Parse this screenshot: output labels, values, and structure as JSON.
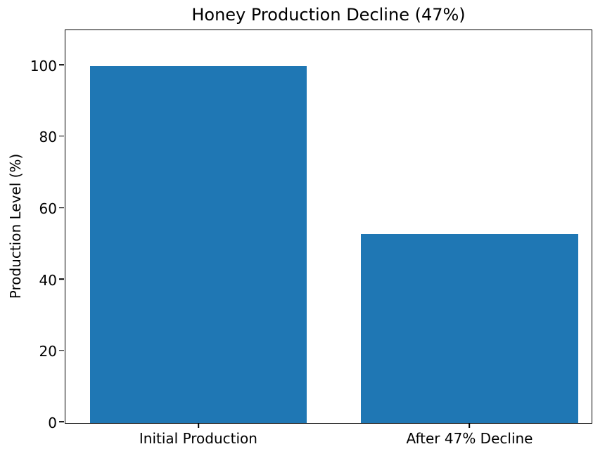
{
  "figure": {
    "background": "#ffffff"
  },
  "chart_data": {
    "type": "bar",
    "title": "Honey Production Decline (47%)",
    "categories": [
      "Initial Production",
      "After 47% Decline"
    ],
    "values": [
      100,
      53
    ],
    "xlabel": "",
    "ylabel": "Production Level (%)",
    "ylim": [
      0,
      110
    ],
    "yticks": [
      0,
      20,
      40,
      60,
      80,
      100
    ],
    "xlim": [
      -0.49,
      1.45
    ],
    "bar_width": 0.8,
    "bar_color": "#1f77b4",
    "axis_color": "#000000",
    "text_color": "#000000",
    "grid": false,
    "legend_position": "none"
  }
}
